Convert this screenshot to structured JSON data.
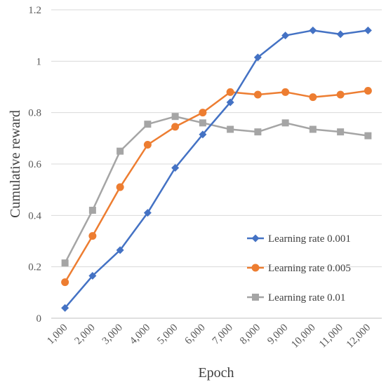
{
  "chart_data": {
    "type": "line",
    "xlabel": "Epoch",
    "ylabel": "Cumulative reward",
    "ylim": [
      0,
      1.2
    ],
    "yticks": [
      "0",
      "0.2",
      "0.4",
      "0.6",
      "0.8",
      "1",
      "1.2"
    ],
    "categories": [
      "1,000",
      "2,000",
      "3,000",
      "4,000",
      "5,000",
      "6,000",
      "7,000",
      "8,000",
      "9,000",
      "10,000",
      "11,000",
      "12,000"
    ],
    "grid": "horizontal",
    "legend_position": "lower-right",
    "series": [
      {
        "name": "Learning rate 0.001",
        "color": "#4472c4",
        "marker": "diamond",
        "values": [
          0.04,
          0.165,
          0.265,
          0.41,
          0.585,
          0.715,
          0.84,
          1.015,
          1.1,
          1.12,
          1.105,
          1.12
        ]
      },
      {
        "name": "Learning rate 0.005",
        "color": "#ed7d31",
        "marker": "circle",
        "values": [
          0.14,
          0.32,
          0.51,
          0.675,
          0.745,
          0.8,
          0.88,
          0.87,
          0.88,
          0.86,
          0.87,
          0.885
        ]
      },
      {
        "name": "Learning rate 0.01",
        "color": "#a5a5a5",
        "marker": "square",
        "values": [
          0.215,
          0.42,
          0.65,
          0.755,
          0.785,
          0.76,
          0.735,
          0.725,
          0.76,
          0.735,
          0.725,
          0.71
        ]
      }
    ]
  }
}
